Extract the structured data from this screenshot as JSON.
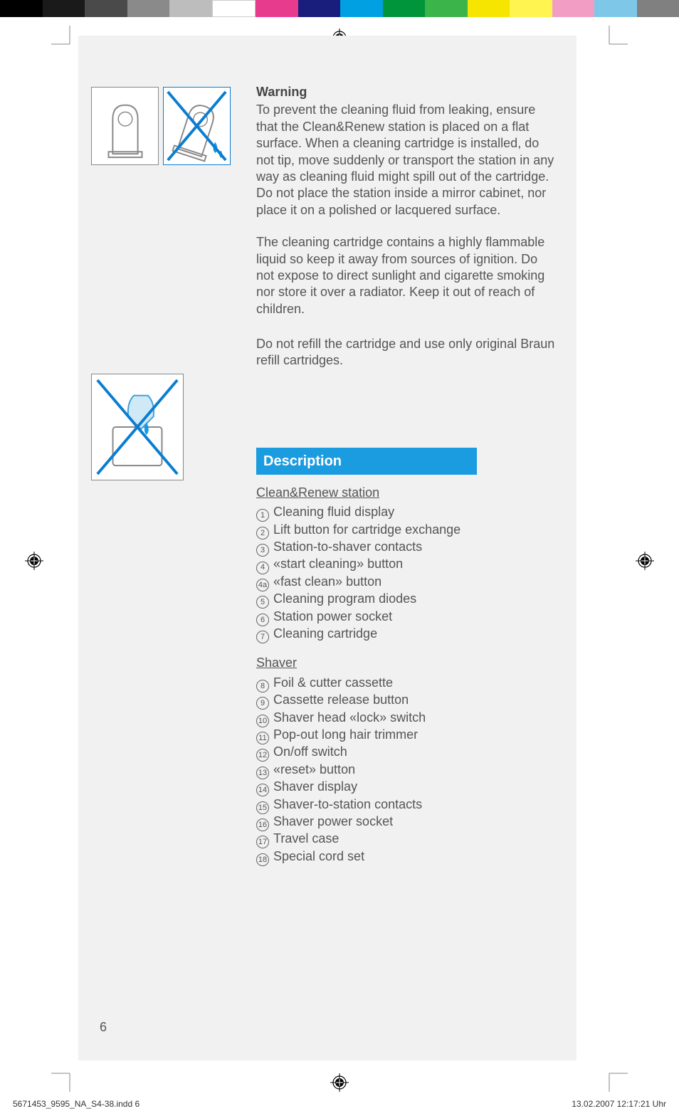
{
  "colorbar": [
    "#000000",
    "#1a1a1a",
    "#4a4a4a",
    "#8a8a8a",
    "#bdbdbd",
    "#ffffff",
    "#e73b8e",
    "#191d7c",
    "#00a0e3",
    "#00953b",
    "#3bb44a",
    "#f6e500",
    "#fff450",
    "#f29ec4",
    "#7ec7e8",
    "#808080"
  ],
  "warning": {
    "title": "Warning",
    "p1": "To prevent the cleaning fluid from leaking, ensure that the Clean&Renew station is placed on a flat surface.  When a cleaning cartridge is installed, do not tip, move suddenly or transport the station in any way as cleaning fluid might spill out of the cartridge. Do not place the station inside a mirror cabinet, nor place it on a polished or lacquered surface.",
    "p2": "The cleaning cartridge contains a highly flammable liquid so keep it away from sources of ignition. Do not expose to direct sunlight and cigarette smoking nor store it over a radiator. Keep it out of reach of children.",
    "p3": "Do not refill the cartridge and use only original Braun refill cartridges."
  },
  "description": {
    "banner": "Description",
    "section1": {
      "title": "Clean&Renew station",
      "items": [
        {
          "n": "1",
          "t": "Cleaning fluid display"
        },
        {
          "n": "2",
          "t": "Lift button for cartridge exchange"
        },
        {
          "n": "3",
          "t": "Station-to-shaver contacts"
        },
        {
          "n": "4",
          "t": "«start cleaning» button"
        },
        {
          "n": "4a",
          "t": "«fast clean» button"
        },
        {
          "n": "5",
          "t": "Cleaning program diodes"
        },
        {
          "n": "6",
          "t": "Station power socket"
        },
        {
          "n": "7",
          "t": "Cleaning cartridge"
        }
      ]
    },
    "section2": {
      "title": "Shaver",
      "items": [
        {
          "n": "8",
          "t": "Foil & cutter cassette"
        },
        {
          "n": "9",
          "t": "Cassette release button"
        },
        {
          "n": "10",
          "t": "Shaver head «lock» switch"
        },
        {
          "n": "11",
          "t": "Pop-out long hair trimmer"
        },
        {
          "n": "12",
          "t": "On/off switch"
        },
        {
          "n": "13",
          "t": "«reset» button"
        },
        {
          "n": "14",
          "t": "Shaver display"
        },
        {
          "n": "15",
          "t": "Shaver-to-station contacts"
        },
        {
          "n": "16",
          "t": "Shaver power socket"
        },
        {
          "n": "17",
          "t": "Travel case"
        },
        {
          "n": "18",
          "t": "Special cord set"
        }
      ]
    }
  },
  "pagenum": "6",
  "footer": {
    "left": "5671453_9595_NA_S4-38.indd   6",
    "right": "13.02.2007   12:17:21 Uhr"
  }
}
